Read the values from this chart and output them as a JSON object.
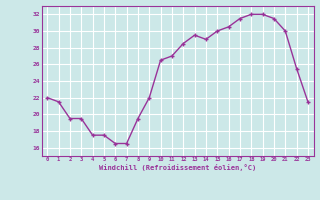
{
  "x": [
    0,
    1,
    2,
    3,
    4,
    5,
    6,
    7,
    8,
    9,
    10,
    11,
    12,
    13,
    14,
    15,
    16,
    17,
    18,
    19,
    20,
    21,
    22,
    23
  ],
  "y": [
    22,
    21.5,
    19.5,
    19.5,
    17.5,
    17.5,
    16.5,
    16.5,
    19.5,
    22,
    26.5,
    27,
    28.5,
    29.5,
    29,
    30,
    30.5,
    31.5,
    32,
    32,
    31.5,
    30,
    25.5,
    21.5
  ],
  "line_color": "#993399",
  "marker": "+",
  "marker_size": 3,
  "bg_color": "#cce8e8",
  "grid_color": "#ffffff",
  "xlabel": "Windchill (Refroidissement éolien,°C)",
  "xlabel_color": "#993399",
  "tick_color": "#993399",
  "axis_color": "#993399",
  "ylim": [
    15,
    33
  ],
  "xlim": [
    -0.5,
    23.5
  ],
  "yticks": [
    16,
    18,
    20,
    22,
    24,
    26,
    28,
    30,
    32
  ],
  "xticks": [
    0,
    1,
    2,
    3,
    4,
    5,
    6,
    7,
    8,
    9,
    10,
    11,
    12,
    13,
    14,
    15,
    16,
    17,
    18,
    19,
    20,
    21,
    22,
    23
  ]
}
